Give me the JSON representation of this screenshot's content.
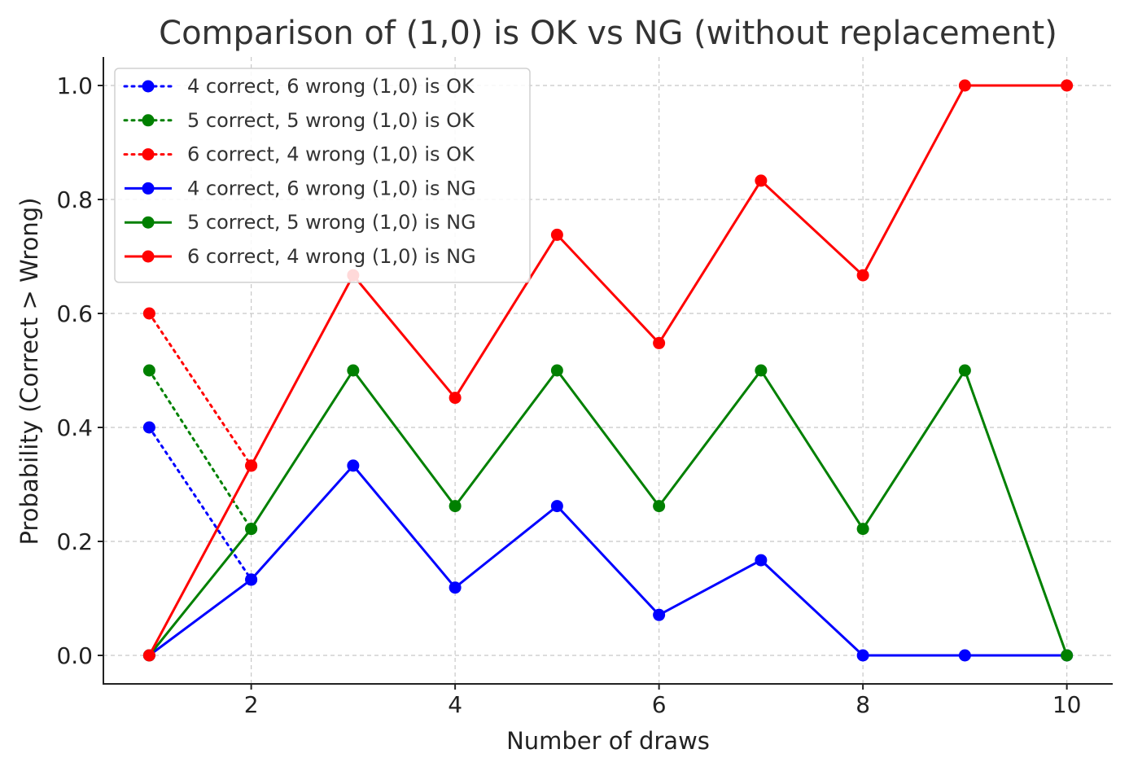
{
  "chart_data": {
    "type": "line",
    "title": "Comparison of (1,0) is OK vs NG (without replacement)",
    "xlabel": "Number of draws",
    "ylabel": "Probability (Correct > Wrong)",
    "xlim": [
      0.55,
      10.45
    ],
    "ylim": [
      -0.05,
      1.05
    ],
    "xticks": [
      2,
      4,
      6,
      8,
      10
    ],
    "xtick_labels": [
      "2",
      "4",
      "6",
      "8",
      "10"
    ],
    "yticks": [
      0.0,
      0.2,
      0.4,
      0.6,
      0.8,
      1.0
    ],
    "ytick_labels": [
      "0.0",
      "0.2",
      "0.4",
      "0.6",
      "0.8",
      "1.0"
    ],
    "grid": true,
    "legend_position": "top-left",
    "series": [
      {
        "name": "4 correct, 6 wrong (1,0) is OK",
        "color": "#0000ff",
        "style": "dotted",
        "x": [
          1,
          2
        ],
        "values": [
          0.4,
          0.133
        ]
      },
      {
        "name": "5 correct, 5 wrong (1,0) is OK",
        "color": "#008000",
        "style": "dotted",
        "x": [
          1,
          2
        ],
        "values": [
          0.5,
          0.222
        ]
      },
      {
        "name": "6 correct, 4 wrong (1,0) is OK",
        "color": "#ff0000",
        "style": "dotted",
        "x": [
          1,
          2
        ],
        "values": [
          0.6,
          0.333
        ]
      },
      {
        "name": "4 correct, 6 wrong (1,0) is NG",
        "color": "#0000ff",
        "style": "solid",
        "x": [
          1,
          2,
          3,
          4,
          5,
          6,
          7,
          8,
          9,
          10
        ],
        "values": [
          0.0,
          0.133,
          0.333,
          0.119,
          0.262,
          0.071,
          0.167,
          0.0,
          0.0,
          0.0
        ]
      },
      {
        "name": "5 correct, 5 wrong (1,0) is NG",
        "color": "#008000",
        "style": "solid",
        "x": [
          1,
          2,
          3,
          4,
          5,
          6,
          7,
          8,
          9,
          10
        ],
        "values": [
          0.0,
          0.222,
          0.5,
          0.262,
          0.5,
          0.262,
          0.5,
          0.222,
          0.5,
          0.0
        ]
      },
      {
        "name": "6 correct, 4 wrong (1,0) is NG",
        "color": "#ff0000",
        "style": "solid",
        "x": [
          1,
          2,
          3,
          4,
          5,
          6,
          7,
          8,
          9,
          10
        ],
        "values": [
          0.0,
          0.333,
          0.667,
          0.452,
          0.738,
          0.548,
          0.833,
          0.667,
          1.0,
          1.0
        ]
      }
    ]
  }
}
